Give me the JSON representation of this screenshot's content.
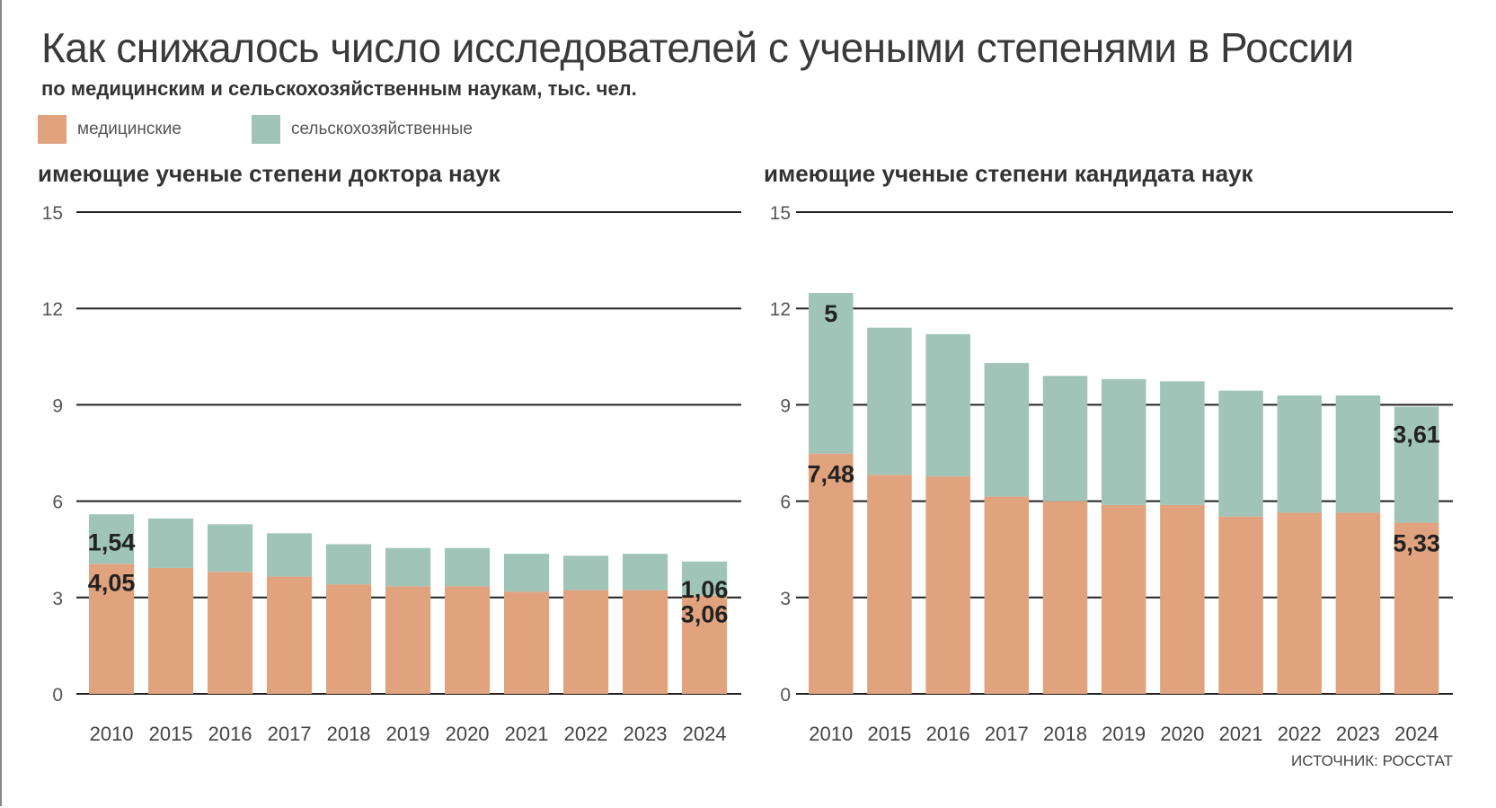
{
  "title": "Как снижалось число исследователей с учеными степенями в России",
  "subtitle": "по медицинским и сельскохозяйственным наукам, тыс. чел.",
  "legend": [
    {
      "label": "медицинские",
      "color": "#e0a37e"
    },
    {
      "label": "сельскохозяйственные",
      "color": "#a0c4b7"
    }
  ],
  "source": "ИСТОЧНИК: РОССТАТ",
  "chart_data": [
    {
      "type": "bar",
      "stacked": true,
      "title": "имеющие ученые степени доктора наук",
      "categories": [
        "2010",
        "2015",
        "2016",
        "2017",
        "2018",
        "2019",
        "2020",
        "2021",
        "2022",
        "2023",
        "2024"
      ],
      "ylim": [
        0,
        15
      ],
      "yticks": [
        0,
        3,
        6,
        9,
        12,
        15
      ],
      "grid": true,
      "series": [
        {
          "name": "медицинские",
          "values": [
            4.05,
            3.92,
            3.8,
            3.65,
            3.41,
            3.35,
            3.35,
            3.18,
            3.23,
            3.23,
            3.06
          ]
        },
        {
          "name": "сельскохозяйственные",
          "values": [
            1.54,
            1.54,
            1.48,
            1.35,
            1.25,
            1.19,
            1.19,
            1.18,
            1.07,
            1.13,
            1.06
          ]
        }
      ],
      "data_labels": [
        {
          "category": "2010",
          "series": "сельскохозяйственные",
          "text": "1,54"
        },
        {
          "category": "2010",
          "series": "медицинские",
          "text": "4,05"
        },
        {
          "category": "2024",
          "series": "сельскохозяйственные",
          "text": "1,06"
        },
        {
          "category": "2024",
          "series": "медицинские",
          "text": "3,06"
        }
      ]
    },
    {
      "type": "bar",
      "stacked": true,
      "title": "имеющие ученые степени кандидата наук",
      "categories": [
        "2010",
        "2015",
        "2016",
        "2017",
        "2018",
        "2019",
        "2020",
        "2021",
        "2022",
        "2023",
        "2024"
      ],
      "ylim": [
        0,
        15
      ],
      "yticks": [
        0,
        3,
        6,
        9,
        12,
        15
      ],
      "grid": true,
      "series": [
        {
          "name": "медицинские",
          "values": [
            7.48,
            6.82,
            6.77,
            6.14,
            6.0,
            5.88,
            5.88,
            5.52,
            5.64,
            5.64,
            5.33
          ]
        },
        {
          "name": "сельскохозяйственные",
          "values": [
            5,
            4.58,
            4.43,
            4.16,
            3.9,
            3.92,
            3.85,
            3.92,
            3.65,
            3.65,
            3.61
          ]
        }
      ],
      "data_labels": [
        {
          "category": "2010",
          "series": "сельскохозяйственные",
          "text": "5"
        },
        {
          "category": "2010",
          "series": "медицинские",
          "text": "7,48"
        },
        {
          "category": "2024",
          "series": "сельскохозяйственные",
          "text": "3,61"
        },
        {
          "category": "2024",
          "series": "медицинские",
          "text": "5,33"
        }
      ]
    }
  ]
}
